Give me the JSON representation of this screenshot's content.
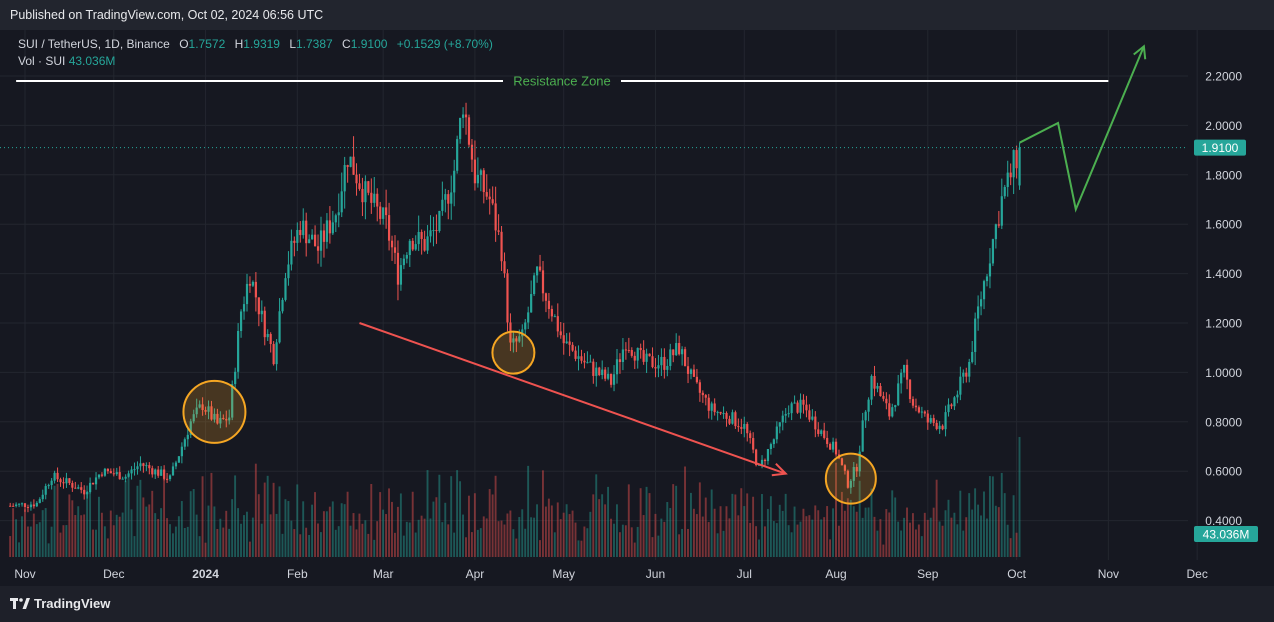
{
  "header": {
    "published": "Published on TradingView.com, Oct 02, 2024 06:56 UTC"
  },
  "legend": {
    "symbol": "SUI / TetherUS, 1D, Binance",
    "open_label": "O",
    "open": "1.7572",
    "high_label": "H",
    "high": "1.9319",
    "low_label": "L",
    "low": "1.7387",
    "close_label": "C",
    "close": "1.9100",
    "change": "+0.1529 (+8.70%)",
    "vol_label": "Vol · SUI",
    "vol_value": "43.036M"
  },
  "footer": {
    "brand": "TradingView"
  },
  "colors": {
    "up": "#26a69a",
    "down": "#ef5350",
    "projection": "#4caf50",
    "resistance": "#ffffff",
    "circle": "#f5a623",
    "trend": "#ef5350"
  },
  "chart_data": {
    "type": "candlestick",
    "ylim": [
      0.36,
      2.36
    ],
    "y_ticks": [
      "2.2000",
      "2.0000",
      "1.8000",
      "1.6000",
      "1.4000",
      "1.2000",
      "1.0000",
      "0.8000",
      "0.6000",
      "0.4000"
    ],
    "x_ticks": [
      "Nov",
      "Dec",
      "2024",
      "Feb",
      "Mar",
      "Apr",
      "May",
      "Jun",
      "Jul",
      "Aug",
      "Sep",
      "Oct",
      "Nov",
      "Dec"
    ],
    "x_tick_dates": [
      "2023-11-01",
      "2023-12-01",
      "2024-01-01",
      "2024-02-01",
      "2024-03-01",
      "2024-04-01",
      "2024-05-01",
      "2024-06-01",
      "2024-07-01",
      "2024-08-01",
      "2024-09-01",
      "2024-10-01",
      "2024-11-01",
      "2024-12-01"
    ],
    "first_date": "2023-10-27",
    "last_date": "2024-10-02",
    "price_anchors": [
      [
        "2023-10-27",
        0.46
      ],
      [
        "2023-11-05",
        0.47
      ],
      [
        "2023-11-10",
        0.58
      ],
      [
        "2023-11-16",
        0.55
      ],
      [
        "2023-11-21",
        0.52
      ],
      [
        "2023-11-27",
        0.6
      ],
      [
        "2023-12-05",
        0.58
      ],
      [
        "2023-12-10",
        0.63
      ],
      [
        "2023-12-15",
        0.6
      ],
      [
        "2023-12-20",
        0.57
      ],
      [
        "2023-12-27",
        0.8
      ],
      [
        "2023-12-31",
        0.87
      ],
      [
        "2024-01-05",
        0.79
      ],
      [
        "2024-01-09",
        0.82
      ],
      [
        "2024-01-13",
        1.25
      ],
      [
        "2024-01-16",
        1.4
      ],
      [
        "2024-01-20",
        1.22
      ],
      [
        "2024-01-24",
        1.07
      ],
      [
        "2024-01-28",
        1.42
      ],
      [
        "2024-02-02",
        1.6
      ],
      [
        "2024-02-08",
        1.5
      ],
      [
        "2024-02-14",
        1.65
      ],
      [
        "2024-02-18",
        1.88
      ],
      [
        "2024-02-24",
        1.72
      ],
      [
        "2024-03-02",
        1.6
      ],
      [
        "2024-03-06",
        1.4
      ],
      [
        "2024-03-10",
        1.55
      ],
      [
        "2024-03-15",
        1.52
      ],
      [
        "2024-03-20",
        1.6
      ],
      [
        "2024-03-25",
        1.82
      ],
      [
        "2024-03-28",
        2.1
      ],
      [
        "2024-04-01",
        1.8
      ],
      [
        "2024-04-06",
        1.7
      ],
      [
        "2024-04-10",
        1.5
      ],
      [
        "2024-04-13",
        1.1
      ],
      [
        "2024-04-17",
        1.14
      ],
      [
        "2024-04-22",
        1.4
      ],
      [
        "2024-04-27",
        1.25
      ],
      [
        "2024-05-01",
        1.12
      ],
      [
        "2024-05-10",
        1.02
      ],
      [
        "2024-05-17",
        0.96
      ],
      [
        "2024-05-22",
        1.13
      ],
      [
        "2024-05-28",
        1.04
      ],
      [
        "2024-06-04",
        1.04
      ],
      [
        "2024-06-09",
        1.1
      ],
      [
        "2024-06-14",
        0.95
      ],
      [
        "2024-06-20",
        0.85
      ],
      [
        "2024-06-26",
        0.82
      ],
      [
        "2024-07-01",
        0.78
      ],
      [
        "2024-07-06",
        0.61
      ],
      [
        "2024-07-11",
        0.73
      ],
      [
        "2024-07-16",
        0.86
      ],
      [
        "2024-07-21",
        0.86
      ],
      [
        "2024-07-27",
        0.76
      ],
      [
        "2024-08-01",
        0.68
      ],
      [
        "2024-08-05",
        0.55
      ],
      [
        "2024-08-08",
        0.62
      ],
      [
        "2024-08-11",
        0.86
      ],
      [
        "2024-08-13",
        0.98
      ],
      [
        "2024-08-19",
        0.83
      ],
      [
        "2024-08-24",
        1.0
      ],
      [
        "2024-08-27",
        0.88
      ],
      [
        "2024-09-01",
        0.8
      ],
      [
        "2024-09-06",
        0.79
      ],
      [
        "2024-09-11",
        0.92
      ],
      [
        "2024-09-15",
        1.04
      ],
      [
        "2024-09-18",
        1.25
      ],
      [
        "2024-09-22",
        1.48
      ],
      [
        "2024-09-26",
        1.7
      ],
      [
        "2024-09-29",
        1.8
      ],
      [
        "2024-10-02",
        1.91
      ]
    ],
    "last_price": "1.9100",
    "last_volume": "43.036M",
    "resistance": {
      "label": "Resistance Zone",
      "price": 2.18,
      "from": "2023-10-29",
      "to": "2024-11-01"
    },
    "projection": [
      [
        "2024-10-02",
        1.93
      ],
      [
        "2024-10-15",
        2.01
      ],
      [
        "2024-10-21",
        1.66
      ],
      [
        "2024-11-13",
        2.32
      ]
    ],
    "downtrend": [
      [
        "2024-02-22",
        1.2
      ],
      [
        "2024-07-15",
        0.59
      ]
    ],
    "circles": [
      {
        "date": "2024-01-04",
        "price": 0.84
      },
      {
        "date": "2024-04-14",
        "price": 1.08
      },
      {
        "date": "2024-08-06",
        "price": 0.57
      }
    ]
  }
}
